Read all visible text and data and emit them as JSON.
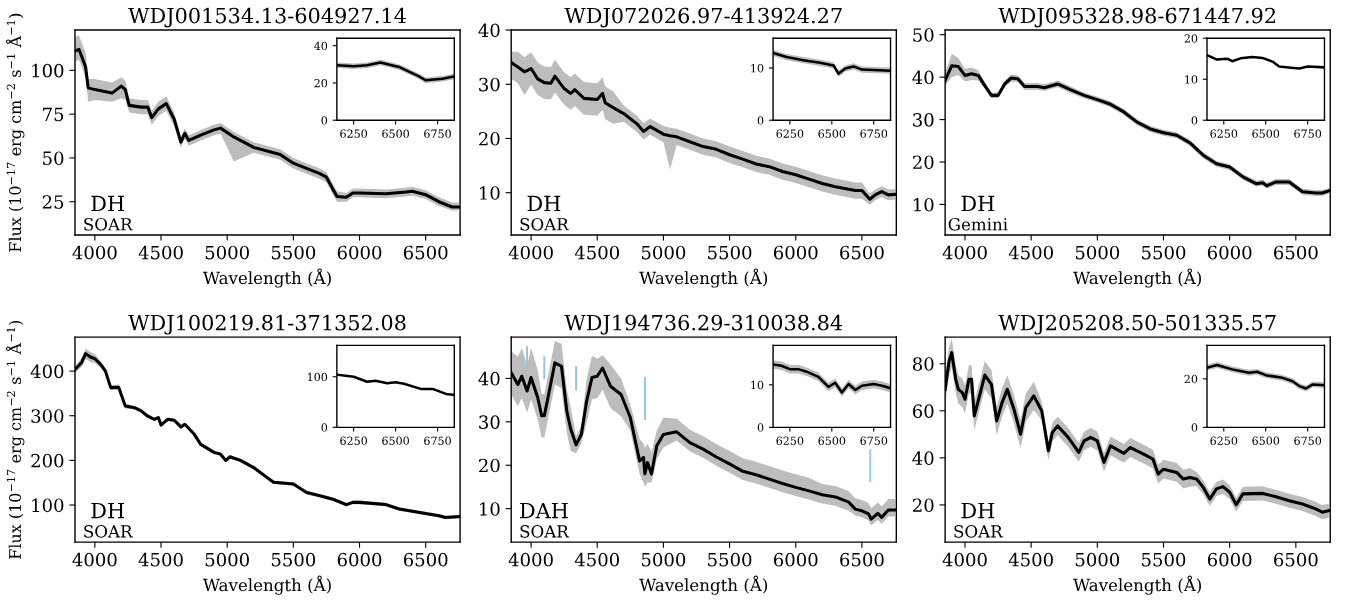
{
  "chart_data": [
    {
      "type": "line",
      "title": "WDJ001534.13-604927.14",
      "xlabel": "Wavelength (Å)",
      "ylabel": "Flux (10$^{−17}$ erg cm$^{−2}$ s$^{−1}$ Å$^{−1}$)",
      "annotations": [
        "DH",
        "SOAR"
      ],
      "xlim": [
        3850,
        6760
      ],
      "ylim": [
        6,
        123
      ],
      "xticks": [
        4000,
        4500,
        5000,
        5500,
        6000,
        6500
      ],
      "yticks": [
        25,
        50,
        75,
        100
      ],
      "x": [
        3850,
        3880,
        3930,
        3950,
        4000,
        4130,
        4200,
        4230,
        4260,
        4350,
        4400,
        4430,
        4480,
        4540,
        4600,
        4650,
        4680,
        4710,
        4800,
        4900,
        4950,
        5050,
        5200,
        5400,
        5500,
        5600,
        5700,
        5750,
        5800,
        5830,
        5900,
        5950,
        6000,
        6200,
        6350,
        6400,
        6500,
        6600,
        6700,
        6750
      ],
      "series": [
        {
          "color": "#000000",
          "values": [
            111,
            112,
            102,
            90,
            89,
            87,
            91,
            89,
            80,
            79,
            79,
            73,
            78,
            81,
            72,
            59,
            64,
            60,
            63,
            66,
            67,
            62,
            56,
            52,
            47,
            44,
            41,
            39,
            32,
            28,
            27.5,
            30,
            30,
            29.5,
            30.5,
            31,
            29,
            25,
            22,
            22
          ],
          "lower": [
            105,
            106,
            96,
            82,
            83,
            82,
            84,
            83,
            76,
            75,
            75,
            69,
            74,
            77,
            68,
            56,
            61,
            57,
            60,
            63,
            64,
            48,
            53,
            49,
            44,
            41,
            38,
            36,
            29,
            25,
            25,
            27.5,
            27.5,
            27,
            28,
            28.5,
            26.5,
            22.5,
            20,
            20
          ],
          "upper": [
            119,
            120,
            110,
            95,
            95,
            93,
            96,
            94,
            84,
            83,
            83,
            77,
            82,
            85,
            76,
            62,
            67,
            63,
            66,
            69,
            70,
            65,
            59,
            55,
            50,
            47,
            44,
            42,
            35,
            31,
            30,
            32.5,
            32.5,
            32,
            33,
            33.5,
            31.5,
            27.5,
            24.5,
            24.5
          ]
        }
      ]
    },
    {
      "type": "line",
      "xlim": [
        6150,
        6850
      ],
      "ylim": [
        0,
        44
      ],
      "xticks": [
        6250,
        6500,
        6750
      ],
      "yticks": [
        0,
        20,
        40
      ],
      "x": [
        6150,
        6250,
        6330,
        6410,
        6520,
        6630,
        6680,
        6780,
        6850
      ],
      "series": [
        {
          "color": "#000000",
          "values": [
            29.5,
            29,
            29.5,
            31,
            28.6,
            24,
            21.4,
            22.3,
            23.5
          ],
          "lower": [
            28,
            27.5,
            28,
            29.5,
            27.1,
            22.5,
            19.9,
            20.8,
            22
          ],
          "upper": [
            31,
            30.5,
            31,
            32.5,
            30.1,
            25.5,
            22.9,
            23.8,
            25
          ]
        }
      ]
    },
    {
      "type": "line",
      "title": "WDJ072026.97-413924.27",
      "xlabel": "Wavelength (Å)",
      "annotations": [
        "DH",
        "SOAR"
      ],
      "xlim": [
        3850,
        6760
      ],
      "ylim": [
        2.2,
        40
      ],
      "xticks": [
        4000,
        4500,
        5000,
        5500,
        6000,
        6500
      ],
      "yticks": [
        10,
        20,
        30,
        40
      ],
      "x": [
        3850,
        3900,
        3950,
        4000,
        4050,
        4100,
        4150,
        4180,
        4250,
        4300,
        4330,
        4400,
        4500,
        4540,
        4560,
        4620,
        4700,
        4800,
        4850,
        4900,
        5000,
        5050,
        5100,
        5200,
        5300,
        5400,
        5500,
        5600,
        5700,
        5800,
        5900,
        6000,
        6100,
        6200,
        6300,
        6450,
        6500,
        6560,
        6600,
        6650,
        6700,
        6750
      ],
      "series": [
        {
          "color": "#000000",
          "values": [
            34,
            33.2,
            32.3,
            32.9,
            31,
            30.3,
            30.2,
            31.5,
            29.2,
            28.3,
            29,
            27.4,
            27.2,
            28.3,
            26.6,
            25.7,
            24.6,
            22.7,
            21.3,
            22.2,
            20.8,
            20.5,
            20.3,
            19.4,
            18.5,
            18,
            17,
            16.2,
            15.3,
            14.8,
            13.9,
            13.3,
            12.5,
            11.7,
            11.1,
            10.4,
            10.4,
            8.8,
            9.6,
            10.2,
            9.6,
            9.7
          ],
          "lower": [
            31,
            30.2,
            28,
            29.9,
            28,
            27.3,
            27.2,
            28.5,
            26.2,
            25.3,
            26,
            24.4,
            24.2,
            25.3,
            23.6,
            22.7,
            23.1,
            21.2,
            19.8,
            20.7,
            19.3,
            14.3,
            18.8,
            17.9,
            17,
            16.5,
            15.5,
            14.7,
            13.8,
            13.3,
            12.4,
            11.8,
            11,
            10.2,
            9.6,
            8.9,
            8.9,
            7.8,
            8.6,
            9.2,
            8.6,
            8.7
          ],
          "upper": [
            36,
            36,
            35,
            35.9,
            34,
            33.3,
            33.2,
            34.5,
            32.2,
            31.3,
            32,
            30.4,
            30.2,
            31.3,
            29.6,
            28.7,
            26.1,
            24.2,
            22.8,
            23.7,
            22.3,
            22,
            21.8,
            20.9,
            20,
            19.5,
            18.5,
            17.7,
            16.8,
            16.3,
            15.4,
            14.8,
            14,
            13.2,
            12.6,
            11.9,
            11.9,
            9.8,
            10.6,
            11.2,
            10.6,
            10.7
          ]
        }
      ]
    },
    {
      "type": "line",
      "xlim": [
        6150,
        6850
      ],
      "ylim": [
        0,
        15.7
      ],
      "xticks": [
        6250,
        6500,
        6750
      ],
      "yticks": [
        0,
        10
      ],
      "x": [
        6150,
        6230,
        6330,
        6430,
        6510,
        6540,
        6580,
        6630,
        6680,
        6850
      ],
      "series": [
        {
          "color": "#000000",
          "values": [
            12.9,
            12.1,
            11.5,
            11,
            10.5,
            8.9,
            9.9,
            10.3,
            9.7,
            9.5
          ],
          "lower": [
            12.3,
            11.5,
            10.9,
            10.4,
            9.9,
            8.3,
            9.3,
            9.7,
            9.1,
            8.9
          ],
          "upper": [
            13.5,
            12.7,
            12.1,
            11.6,
            11.1,
            9.5,
            10.5,
            10.9,
            10.3,
            10.1
          ]
        }
      ]
    },
    {
      "type": "line",
      "title": "WDJ095328.98-671447.92",
      "xlabel": "Wavelength (Å)",
      "annotations": [
        "DH",
        "Gemini"
      ],
      "xlim": [
        3850,
        6760
      ],
      "ylim": [
        2.8,
        51.1
      ],
      "xticks": [
        4000,
        4500,
        5000,
        5500,
        6000,
        6500
      ],
      "yticks": [
        10,
        20,
        30,
        40,
        50
      ],
      "x": [
        3850,
        3900,
        3950,
        4000,
        4050,
        4100,
        4150,
        4200,
        4250,
        4300,
        4350,
        4400,
        4450,
        4550,
        4600,
        4700,
        4800,
        4900,
        5000,
        5100,
        5200,
        5300,
        5400,
        5500,
        5600,
        5700,
        5800,
        5900,
        6000,
        6100,
        6200,
        6250,
        6280,
        6350,
        6450,
        6550,
        6650,
        6700,
        6750
      ],
      "series": [
        {
          "color": "#000000",
          "values": [
            39.2,
            42.7,
            42.5,
            40.4,
            40.8,
            40.4,
            38,
            35.7,
            35.7,
            38.4,
            39.8,
            39.6,
            37.8,
            37.8,
            37.5,
            38.4,
            37,
            35.7,
            34.7,
            33.6,
            31.8,
            29.4,
            27.8,
            26.9,
            26.3,
            24.5,
            21.6,
            19.6,
            18.8,
            16.5,
            14.9,
            15.1,
            14.4,
            15.3,
            15.3,
            13,
            12.7,
            12.7,
            13.2
          ],
          "lower": [
            38,
            40,
            40.5,
            39,
            39.3,
            39.2,
            37.2,
            35,
            35,
            37.6,
            39,
            38.8,
            37,
            37,
            36.8,
            37.6,
            36.2,
            35,
            34,
            32.9,
            31.1,
            28.7,
            27.1,
            26.2,
            25.6,
            23.8,
            20.9,
            18.9,
            18.1,
            15.8,
            14.2,
            14.4,
            13.7,
            14.6,
            14.6,
            12.3,
            12,
            12,
            12.5
          ],
          "upper": [
            41,
            45.5,
            44.5,
            42,
            42.3,
            41.6,
            38.8,
            36.4,
            36.4,
            39.2,
            40.6,
            40.4,
            38.6,
            38.6,
            38.3,
            39.2,
            37.8,
            36.4,
            35.4,
            34.3,
            32.5,
            30.1,
            28.5,
            27.6,
            27,
            25.2,
            22.3,
            20.3,
            19.5,
            17.2,
            15.6,
            15.8,
            15.1,
            16,
            16,
            13.7,
            13.4,
            13.4,
            13.9
          ]
        }
      ]
    },
    {
      "type": "line",
      "xlim": [
        6150,
        6850
      ],
      "ylim": [
        0,
        20
      ],
      "xticks": [
        6250,
        6500,
        6750
      ],
      "yticks": [
        0,
        10,
        20
      ],
      "x": [
        6150,
        6210,
        6270,
        6300,
        6350,
        6420,
        6480,
        6540,
        6580,
        6650,
        6700,
        6750,
        6850
      ],
      "series": [
        {
          "color": "#000000",
          "values": [
            15.9,
            14.8,
            15,
            14.4,
            15.1,
            15.4,
            15.2,
            14.3,
            13.1,
            12.8,
            12.6,
            13.1,
            12.9
          ]
        }
      ]
    },
    {
      "type": "line",
      "title": "WDJ100219.81-371352.08",
      "xlabel": "Wavelength (Å)",
      "ylabel": "Flux (10$^{−17}$ erg cm$^{−2}$ s$^{−1}$ Å$^{−1}$)",
      "annotations": [
        "DH",
        "SOAR"
      ],
      "xlim": [
        3850,
        6760
      ],
      "ylim": [
        17,
        476
      ],
      "xticks": [
        4000,
        4500,
        5000,
        5500,
        6000,
        6500
      ],
      "yticks": [
        100,
        200,
        300,
        400
      ],
      "x": [
        3850,
        3900,
        3930,
        3970,
        4000,
        4050,
        4080,
        4120,
        4180,
        4230,
        4300,
        4350,
        4400,
        4450,
        4480,
        4500,
        4550,
        4600,
        4650,
        4680,
        4750,
        4800,
        4900,
        4950,
        4990,
        5020,
        5100,
        5200,
        5300,
        5350,
        5500,
        5600,
        5700,
        5800,
        5900,
        5950,
        6000,
        6200,
        6300,
        6400,
        6500,
        6600,
        6650,
        6750
      ],
      "series": [
        {
          "color": "#000000",
          "values": [
            404,
            419,
            439,
            431,
            428,
            413,
            400,
            363,
            364,
            322,
            318,
            311,
            299,
            292,
            296,
            279,
            292,
            290,
            275,
            281,
            259,
            236,
            218,
            214,
            200,
            208,
            200,
            184,
            162,
            151,
            147,
            128,
            121,
            113,
            101,
            106,
            106,
            101,
            91,
            86,
            81,
            76,
            72,
            74
          ],
          "lower": [
            396,
            409,
            427,
            420,
            418,
            406,
            394,
            357,
            358,
            316,
            314,
            307,
            295,
            288,
            292,
            275,
            288,
            286,
            271,
            277,
            255,
            232,
            214,
            210,
            196,
            204,
            196,
            180,
            158,
            147,
            143,
            124,
            117,
            109,
            97,
            102,
            102,
            97,
            87,
            82,
            77,
            72,
            68,
            70
          ],
          "upper": [
            410,
            430,
            450,
            442,
            438,
            420,
            406,
            369,
            370,
            328,
            322,
            315,
            303,
            296,
            300,
            283,
            296,
            294,
            279,
            285,
            263,
            240,
            222,
            218,
            204,
            212,
            204,
            188,
            166,
            155,
            151,
            132,
            125,
            117,
            105,
            110,
            110,
            105,
            95,
            90,
            85,
            80,
            76,
            78
          ]
        }
      ]
    },
    {
      "type": "line",
      "xlim": [
        6150,
        6850
      ],
      "ylim": [
        0,
        162
      ],
      "xticks": [
        6250,
        6500,
        6750
      ],
      "yticks": [
        0,
        100
      ],
      "x": [
        6150,
        6250,
        6330,
        6380,
        6450,
        6500,
        6550,
        6650,
        6720,
        6800,
        6850
      ],
      "series": [
        {
          "color": "#000000",
          "values": [
            104,
            100,
            90,
            92,
            87,
            89,
            86,
            76,
            76,
            66,
            64
          ]
        }
      ]
    },
    {
      "type": "line",
      "title": "WDJ194736.29-310038.84",
      "xlabel": "Wavelength (Å)",
      "annotations": [
        "DAH",
        "SOAR"
      ],
      "xlim": [
        3850,
        6760
      ],
      "ylim": [
        2.3,
        49.5
      ],
      "xticks": [
        4000,
        4500,
        5000,
        5500,
        6000,
        6500
      ],
      "yticks": [
        10,
        20,
        30,
        40
      ],
      "x": [
        3850,
        3900,
        3930,
        3970,
        4000,
        4050,
        4080,
        4100,
        4130,
        4180,
        4230,
        4270,
        4300,
        4340,
        4380,
        4420,
        4460,
        4500,
        4540,
        4600,
        4680,
        4750,
        4820,
        4850,
        4860,
        4880,
        4910,
        4950,
        5000,
        5100,
        5200,
        5300,
        5400,
        5500,
        5600,
        5700,
        5800,
        5900,
        6000,
        6100,
        6200,
        6300,
        6400,
        6450,
        6500,
        6550,
        6570,
        6620,
        6650,
        6700,
        6750
      ],
      "series": [
        {
          "color": "#000000",
          "values": [
            41.3,
            38.6,
            40.5,
            37.1,
            40.2,
            35.6,
            31.4,
            31.4,
            35.9,
            43.6,
            42.8,
            32.5,
            28.3,
            24.7,
            27.1,
            34.8,
            40.2,
            40.5,
            42.4,
            38.2,
            36.3,
            31,
            21,
            21.8,
            18,
            20.6,
            18,
            24.5,
            27.1,
            27.7,
            25.2,
            23.7,
            21.9,
            20.3,
            18.6,
            17.8,
            16.8,
            15.8,
            14.9,
            14.1,
            13.2,
            12.7,
            11.5,
            9.9,
            9.5,
            8.8,
            7.6,
            8.9,
            8,
            9.7,
            9.7
          ],
          "lower": [
            36.3,
            33.6,
            35.5,
            32.1,
            35.2,
            30.6,
            26.4,
            26.4,
            30.9,
            38.6,
            37.8,
            27.5,
            23.3,
            22.7,
            25.1,
            29.8,
            35.2,
            35.5,
            37.4,
            33.2,
            31.3,
            28,
            18,
            16,
            15,
            16,
            16,
            21.5,
            24.1,
            25.7,
            23.2,
            21.7,
            19.9,
            18.3,
            16.6,
            15.8,
            14.8,
            13.8,
            12.9,
            12.1,
            11.2,
            10.7,
            9.5,
            8.4,
            8,
            7.3,
            6.1,
            7.4,
            6.5,
            8.2,
            8.2
          ],
          "upper": [
            46.3,
            45,
            47,
            43,
            47,
            42,
            36.4,
            36.4,
            40.9,
            48.6,
            48,
            37.5,
            33.3,
            26.7,
            29.1,
            39.8,
            45.2,
            44.5,
            45.4,
            43.2,
            40,
            34,
            26,
            25,
            24,
            25,
            23,
            28,
            31,
            30.7,
            28.2,
            26.7,
            24.9,
            23.3,
            21.6,
            20.8,
            19.8,
            18.8,
            17.9,
            17.1,
            15.7,
            15.2,
            14,
            12.4,
            12,
            11.3,
            10.1,
            11.4,
            10.5,
            12.2,
            12.2
          ]
        },
        {
          "type": "bar",
          "color": "#8ec6e0",
          "x": [
            3970,
            4100,
            4340,
            4861,
            6563
          ],
          "base": [
            42.1,
            39.8,
            37.2,
            30.4,
            16.1
          ],
          "values": [
            5.3,
            5.3,
            5.6,
            9.9,
            7.6
          ]
        }
      ]
    },
    {
      "type": "line",
      "xlim": [
        6150,
        6850
      ],
      "ylim": [
        0,
        19.3
      ],
      "xticks": [
        6250,
        6500,
        6750
      ],
      "yticks": [
        0,
        10
      ],
      "x": [
        6150,
        6200,
        6250,
        6300,
        6350,
        6420,
        6480,
        6520,
        6560,
        6600,
        6640,
        6680,
        6750,
        6800,
        6850
      ],
      "series": [
        {
          "color": "#000000",
          "values": [
            14.8,
            14.5,
            13.7,
            13.7,
            13.1,
            11.9,
            9.5,
            10.5,
            8.2,
            10.2,
            8.8,
            9.8,
            10.2,
            9.8,
            9.2
          ],
          "lower": [
            13.8,
            13.5,
            12.7,
            12.7,
            12.1,
            10.9,
            8.5,
            9.5,
            7.2,
            9.2,
            7.8,
            8.8,
            9.2,
            8.8,
            8.2
          ],
          "upper": [
            15.8,
            15.5,
            14.7,
            14.7,
            14.1,
            12.9,
            10.5,
            11.5,
            9.2,
            11.2,
            9.8,
            10.8,
            11.2,
            10.8,
            10.2
          ]
        }
      ]
    },
    {
      "type": "line",
      "title": "WDJ205208.50-501335.57",
      "xlabel": "Wavelength (Å)",
      "annotations": [
        "DH",
        "SOAR"
      ],
      "xlim": [
        3850,
        6760
      ],
      "ylim": [
        4.2,
        91.3
      ],
      "xticks": [
        4000,
        4500,
        5000,
        5500,
        6000,
        6500
      ],
      "yticks": [
        20,
        40,
        60,
        80
      ],
      "x": [
        3850,
        3880,
        3900,
        3930,
        3950,
        3980,
        4000,
        4030,
        4050,
        4070,
        4100,
        4150,
        4200,
        4240,
        4280,
        4320,
        4370,
        4420,
        4460,
        4520,
        4580,
        4630,
        4660,
        4700,
        4780,
        4860,
        4900,
        4950,
        5000,
        5050,
        5100,
        5200,
        5250,
        5350,
        5420,
        5460,
        5500,
        5600,
        5650,
        5700,
        5750,
        5800,
        5850,
        5900,
        5950,
        6000,
        6050,
        6100,
        6250,
        6350,
        6450,
        6550,
        6650,
        6700,
        6750
      ],
      "series": [
        {
          "color": "#000000",
          "values": [
            69.1,
            81.1,
            84.7,
            73.4,
            69.1,
            67.7,
            64.9,
            73.4,
            73.4,
            57.8,
            64.2,
            75.2,
            71.2,
            55.7,
            63.5,
            69.1,
            60.7,
            50.1,
            61.4,
            66.3,
            60,
            43,
            50.8,
            53.6,
            48.7,
            42.3,
            47.2,
            48.7,
            47.2,
            38.1,
            45.1,
            41.9,
            44.4,
            41.6,
            39.5,
            33.1,
            35.2,
            33.8,
            31,
            31.7,
            31,
            27.5,
            22.5,
            26.8,
            27.8,
            25.4,
            20.1,
            24.7,
            24.9,
            23.5,
            21.8,
            20.4,
            18.3,
            16.9,
            17.6
          ],
          "lower": [
            63.1,
            75.1,
            78.7,
            67.4,
            63.1,
            61.7,
            58.9,
            67.4,
            67.4,
            51.8,
            58.2,
            69.2,
            65.2,
            49.7,
            57.5,
            63.1,
            54.7,
            44.1,
            55.4,
            60.3,
            56,
            39,
            46.8,
            49.6,
            44.7,
            38.3,
            43.2,
            44.7,
            43.2,
            34.1,
            41.1,
            37.9,
            40.4,
            37.6,
            35.5,
            29.1,
            31.2,
            29.8,
            27,
            27.7,
            28,
            24.5,
            19.5,
            23.8,
            24.8,
            22.4,
            17.1,
            21.7,
            21.9,
            20.5,
            18.8,
            17.4,
            15.3,
            13.9,
            14.6
          ],
          "upper": [
            75.1,
            87.1,
            90.7,
            79.4,
            75.1,
            73.7,
            70.9,
            79.4,
            79.4,
            63.8,
            70.2,
            81.2,
            77.2,
            61.7,
            69.5,
            75.1,
            66.7,
            56.1,
            67.4,
            72.3,
            64,
            47,
            54.8,
            57.6,
            52.7,
            46.3,
            51.2,
            52.7,
            51.2,
            42.1,
            49.1,
            45.9,
            48.4,
            45.6,
            43.5,
            37.1,
            39.2,
            37.8,
            35,
            35.7,
            34,
            30.5,
            25.5,
            29.8,
            30.8,
            28.4,
            23.1,
            27.7,
            27.9,
            26.5,
            24.8,
            23.4,
            21.3,
            19.9,
            20.6
          ]
        }
      ]
    },
    {
      "type": "line",
      "xlim": [
        6150,
        6850
      ],
      "ylim": [
        0,
        33.8
      ],
      "xticks": [
        6250,
        6500,
        6750
      ],
      "yticks": [
        0,
        20
      ],
      "x": [
        6150,
        6210,
        6300,
        6400,
        6450,
        6500,
        6600,
        6660,
        6700,
        6740,
        6780,
        6850
      ],
      "series": [
        {
          "color": "#000000",
          "values": [
            24.6,
            25.7,
            23.9,
            22.5,
            22.9,
            21.5,
            20.4,
            19,
            17,
            16,
            17.7,
            17.4
          ],
          "lower": [
            23.4,
            24.5,
            22.7,
            21.3,
            21.7,
            20.3,
            19.2,
            17.8,
            15.8,
            14.8,
            16.5,
            16.2
          ],
          "upper": [
            25.8,
            26.9,
            25.1,
            23.7,
            24.1,
            22.7,
            21.6,
            20.2,
            18.2,
            17.2,
            18.9,
            18.6
          ]
        }
      ]
    }
  ]
}
